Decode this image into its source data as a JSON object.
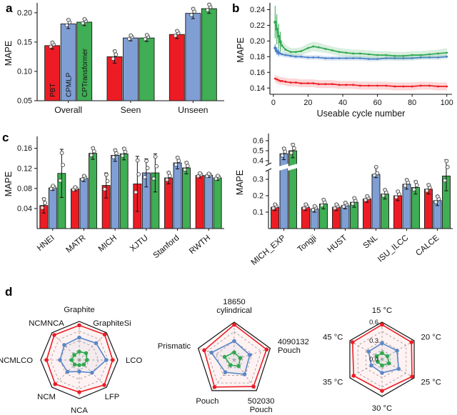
{
  "panel_labels": {
    "a": "a",
    "b": "b",
    "c": "c",
    "d": "d"
  },
  "colors": {
    "red": "#ed1c24",
    "blue_bar": "#7f9fd4",
    "green_bar": "#3fae54",
    "blue_line": "#4a7fc9",
    "green_line": "#2fa84f",
    "bar_edge": "#1a1a1a",
    "grid": "#999999"
  },
  "series_names": [
    "PBT",
    "CPMLP",
    "CPTransformer"
  ],
  "chart_data": [
    {
      "id": "a",
      "type": "bar",
      "ylabel": "MAPE",
      "ylim": [
        0.05,
        0.212
      ],
      "yticks": [
        "0.05",
        "0.10",
        "0.15",
        "0.20"
      ],
      "ytick_values": [
        0.05,
        0.1,
        0.15,
        0.2
      ],
      "categories": [
        "Overall",
        "Seen",
        "Unseen"
      ],
      "inbar_series_labels": true,
      "series": [
        {
          "name": "PBT",
          "color": "#ed1c24",
          "label_color": "#ffffff",
          "values": [
            0.144,
            0.125,
            0.163
          ],
          "err": [
            0.006,
            0.011,
            0.007
          ]
        },
        {
          "name": "CPMLP",
          "color": "#7f9fd4",
          "label_color": "#111111",
          "values": [
            0.181,
            0.157,
            0.199
          ],
          "err": [
            0.008,
            0.005,
            0.009
          ]
        },
        {
          "name": "CPTransformer",
          "color": "#3fae54",
          "label_color": "#111111",
          "values": [
            0.184,
            0.157,
            0.207
          ],
          "err": [
            0.006,
            0.006,
            0.008
          ]
        }
      ]
    },
    {
      "id": "b",
      "type": "line",
      "xlabel": "Useable cycle number",
      "ylabel": "MAPE",
      "xlim": [
        -2,
        103
      ],
      "ylim": [
        0.132,
        0.245
      ],
      "xticks": [
        0,
        20,
        40,
        60,
        80,
        100
      ],
      "yticks": [
        "0.14",
        "0.16",
        "0.18",
        "0.20",
        "0.22",
        "0.24"
      ],
      "ytick_values": [
        0.14,
        0.16,
        0.18,
        0.2,
        0.22,
        0.24
      ],
      "x": [
        1,
        2,
        3,
        4,
        5,
        7,
        10,
        13,
        16,
        20,
        23,
        26,
        30,
        34,
        38,
        42,
        46,
        50,
        55,
        60,
        65,
        70,
        75,
        80,
        85,
        90,
        95,
        100
      ],
      "series": [
        {
          "name": "PBT",
          "color": "#ed1c24",
          "err": 0.005,
          "errbar_n": 0,
          "y": [
            0.152,
            0.151,
            0.15,
            0.149,
            0.149,
            0.148,
            0.147,
            0.147,
            0.146,
            0.146,
            0.146,
            0.145,
            0.145,
            0.145,
            0.144,
            0.144,
            0.144,
            0.143,
            0.143,
            0.143,
            0.143,
            0.142,
            0.142,
            0.142,
            0.143,
            0.143,
            0.142,
            0.142
          ]
        },
        {
          "name": "CPMLP",
          "color": "#4a7fc9",
          "err": 0.003,
          "errbar_n": 3,
          "y": [
            0.191,
            0.187,
            0.185,
            0.184,
            0.183,
            0.182,
            0.181,
            0.18,
            0.18,
            0.179,
            0.179,
            0.179,
            0.178,
            0.178,
            0.178,
            0.178,
            0.178,
            0.178,
            0.177,
            0.177,
            0.178,
            0.178,
            0.178,
            0.178,
            0.179,
            0.179,
            0.179,
            0.18
          ]
        },
        {
          "name": "CPTransformer",
          "color": "#2fa84f",
          "errbar_n": 4,
          "err": [
            0.013,
            0.012,
            0.01,
            0.008,
            0.007,
            0.006,
            0.005,
            0.005,
            0.005,
            0.006,
            0.006,
            0.006,
            0.005,
            0.005,
            0.005,
            0.005,
            0.005,
            0.005,
            0.005,
            0.005,
            0.005,
            0.005,
            0.005,
            0.005,
            0.005,
            0.005,
            0.005,
            0.006
          ],
          "y": [
            0.224,
            0.215,
            0.206,
            0.199,
            0.194,
            0.189,
            0.186,
            0.186,
            0.187,
            0.191,
            0.193,
            0.192,
            0.19,
            0.188,
            0.186,
            0.185,
            0.184,
            0.184,
            0.183,
            0.182,
            0.182,
            0.181,
            0.181,
            0.182,
            0.182,
            0.183,
            0.184,
            0.185
          ]
        }
      ]
    },
    {
      "id": "c1",
      "type": "bar",
      "ylabel": "MAPE",
      "ylim": [
        0,
        0.178
      ],
      "yticks": [
        "0.04",
        "0.08",
        "0.12",
        "0.16"
      ],
      "ytick_values": [
        0.04,
        0.08,
        0.12,
        0.16
      ],
      "categories": [
        "HNEI",
        "MATR",
        "MICH",
        "XJTU",
        "Stanford",
        "RWTH"
      ],
      "series": [
        {
          "name": "PBT",
          "color": "#ed1c24",
          "values": [
            0.046,
            0.079,
            0.086,
            0.089,
            0.101,
            0.106
          ],
          "err": [
            0.015,
            0.004,
            0.025,
            0.055,
            0.012,
            0.005
          ]
        },
        {
          "name": "CPMLP",
          "color": "#7f9fd4",
          "values": [
            0.081,
            0.1,
            0.146,
            0.111,
            0.131,
            0.106
          ],
          "err": [
            0.005,
            0.006,
            0.012,
            0.028,
            0.012,
            0.004
          ]
        },
        {
          "name": "CPTransformer",
          "color": "#3fae54",
          "values": [
            0.11,
            0.15,
            0.149,
            0.111,
            0.121,
            0.101
          ],
          "err": [
            0.048,
            0.012,
            0.012,
            0.038,
            0.012,
            0.005
          ]
        }
      ]
    },
    {
      "id": "c2",
      "type": "bar",
      "ylabel": "MAPE",
      "ylim": [
        0,
        0.62
      ],
      "ybreak": [
        0.345,
        0.385
      ],
      "yticks": [
        "0.1",
        "0.2",
        "0.3",
        "0.4",
        "0.5",
        "0.6"
      ],
      "ytick_values": [
        0.1,
        0.2,
        0.3,
        0.4,
        0.5,
        0.6
      ],
      "categories": [
        "MICH_EXP",
        "Tongji",
        "HUST",
        "SNL",
        "ISU_ILCC",
        "CALCE"
      ],
      "series": [
        {
          "name": "PBT",
          "color": "#ed1c24",
          "values": [
            0.13,
            0.13,
            0.13,
            0.18,
            0.2,
            0.24
          ],
          "err": [
            0.02,
            0.02,
            0.02,
            0.02,
            0.03,
            0.03
          ]
        },
        {
          "name": "CPMLP",
          "color": "#7f9fd4",
          "values": [
            0.47,
            0.12,
            0.14,
            0.33,
            0.27,
            0.17
          ],
          "err": [
            0.06,
            0.02,
            0.02,
            0.02,
            0.03,
            0.03
          ]
        },
        {
          "name": "CPTransformer",
          "color": "#3fae54",
          "values": [
            0.5,
            0.15,
            0.16,
            0.21,
            0.25,
            0.32
          ],
          "err": [
            0.07,
            0.03,
            0.03,
            0.03,
            0.04,
            0.09
          ]
        }
      ]
    },
    {
      "id": "d1",
      "type": "radar",
      "rmax": 0.6,
      "categories": [
        "Graphite",
        "GraphiteSi",
        "LCO",
        "LFP",
        "NCA",
        "NCM",
        "NCMLCO",
        "NCMNCA"
      ],
      "series": [
        {
          "name": "PBT",
          "color": "#ed1c24",
          "values": [
            0.54,
            0.56,
            0.52,
            0.55,
            0.5,
            0.53,
            0.51,
            0.55
          ]
        },
        {
          "name": "CPMLP",
          "color": "#5b87c7",
          "values": [
            0.35,
            0.37,
            0.42,
            0.28,
            0.18,
            0.26,
            0.3,
            0.33
          ]
        },
        {
          "name": "CPTransformer",
          "color": "#2fa84f",
          "values": [
            0.13,
            0.15,
            0.12,
            0.1,
            0.08,
            0.1,
            0.12,
            0.11
          ]
        }
      ]
    },
    {
      "id": "d2",
      "type": "radar",
      "rmax": 0.6,
      "categories": [
        "18650\ncylindrical",
        "4090132\nPouch",
        "502030\nPouch",
        "Pouch",
        "Prismatic"
      ],
      "series": [
        {
          "name": "PBT",
          "color": "#ed1c24",
          "values": [
            0.56,
            0.54,
            0.52,
            0.53,
            0.5
          ]
        },
        {
          "name": "CPMLP",
          "color": "#5b87c7",
          "values": [
            0.3,
            0.26,
            0.28,
            0.24,
            0.38
          ]
        },
        {
          "name": "CPTransformer",
          "color": "#2fa84f",
          "values": [
            0.12,
            0.1,
            0.12,
            0.1,
            0.16
          ]
        }
      ]
    },
    {
      "id": "d3",
      "type": "radar",
      "rmax": 0.6,
      "categories": [
        "15 °C",
        "20 °C",
        "25 °C",
        "30 °C",
        "35 °C",
        "45 °C"
      ],
      "rticks": [
        "0.0",
        "0.3",
        "0.6"
      ],
      "rtick_values": [
        0,
        0.3,
        0.6
      ],
      "rtick_color": "#2f9e44",
      "series": [
        {
          "name": "PBT",
          "color": "#ed1c24",
          "values": [
            0.56,
            0.55,
            0.56,
            0.51,
            0.53,
            0.55
          ]
        },
        {
          "name": "CPMLP",
          "color": "#5b87c7",
          "values": [
            0.26,
            0.28,
            0.31,
            0.22,
            0.2,
            0.25
          ]
        },
        {
          "name": "CPTransformer",
          "color": "#2fa84f",
          "values": [
            0.1,
            0.1,
            0.13,
            0.1,
            0.08,
            0.1
          ]
        }
      ]
    }
  ]
}
